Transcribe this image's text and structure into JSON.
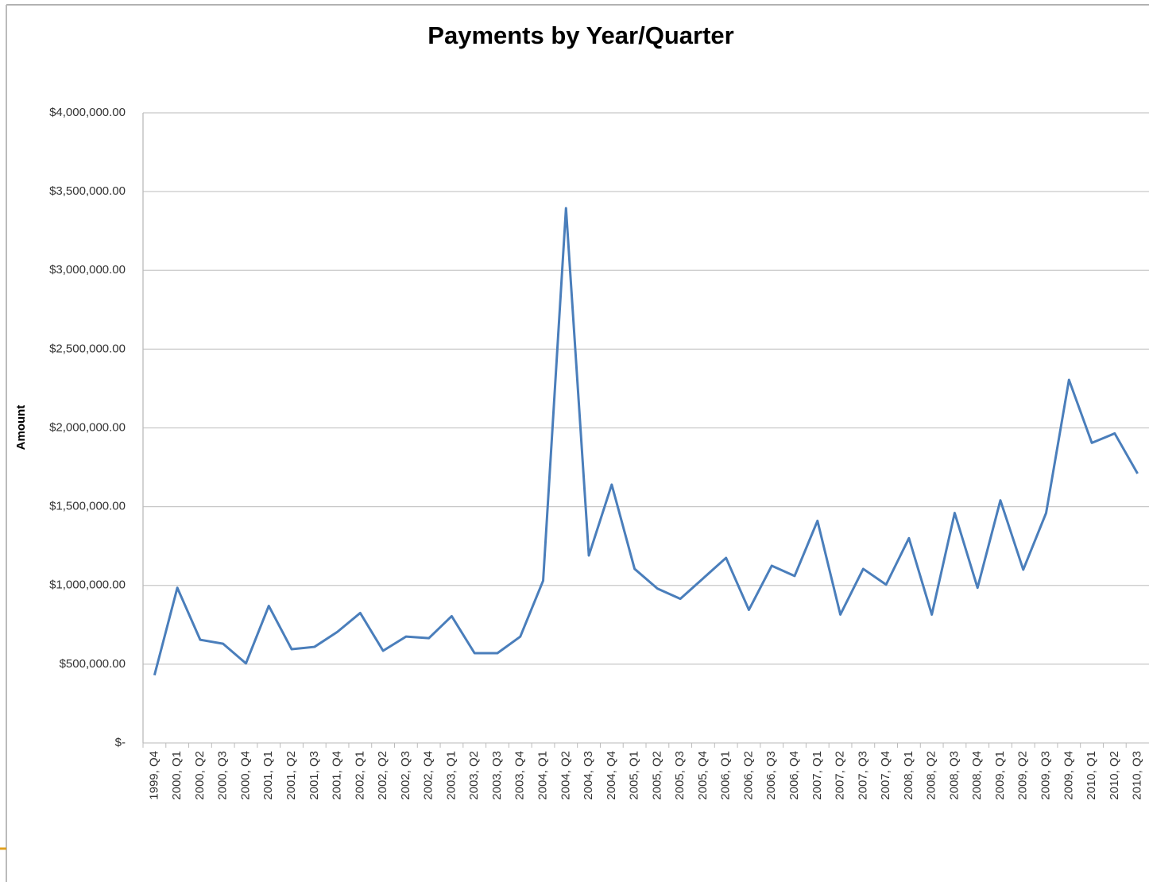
{
  "chart_data": {
    "type": "line",
    "title": "Payments by Year/Quarter",
    "y_label": "Amount",
    "categories": [
      "1999, Q4",
      "2000, Q1",
      "2000, Q2",
      "2000, Q3",
      "2000, Q4",
      "2001, Q1",
      "2001, Q2",
      "2001, Q3",
      "2001, Q4",
      "2002, Q1",
      "2002, Q2",
      "2002, Q3",
      "2002, Q4",
      "2003, Q1",
      "2003, Q2",
      "2003, Q3",
      "2003, Q4",
      "2004, Q1",
      "2004, Q2",
      "2004, Q3",
      "2004, Q4",
      "2005, Q1",
      "2005, Q2",
      "2005, Q3",
      "2005, Q4",
      "2006, Q1",
      "2006, Q2",
      "2006, Q3",
      "2006, Q4",
      "2007, Q1",
      "2007, Q2",
      "2007, Q3",
      "2007, Q4",
      "2008, Q1",
      "2008, Q2",
      "2008, Q3",
      "2008, Q4",
      "2009, Q1",
      "2009, Q2",
      "2009, Q3",
      "2009, Q4",
      "2010, Q1",
      "2010, Q2",
      "2010, Q3"
    ],
    "values": [
      430000,
      985000,
      655000,
      630000,
      505000,
      870000,
      595000,
      610000,
      705000,
      825000,
      585000,
      675000,
      665000,
      805000,
      570000,
      570000,
      675000,
      1030000,
      3395000,
      1190000,
      1640000,
      1105000,
      980000,
      915000,
      1045000,
      1175000,
      845000,
      1125000,
      1060000,
      1410000,
      815000,
      1105000,
      1005000,
      1300000,
      815000,
      1460000,
      985000,
      1540000,
      1100000,
      1460000,
      2305000,
      1905000,
      1965000,
      1710000
    ],
    "color": "#4a7ebb",
    "ylim": [
      0,
      4000000
    ],
    "yticks": [
      {
        "value": 0,
        "label": "$-"
      },
      {
        "value": 500000,
        "label": "$500,000.00"
      },
      {
        "value": 1000000,
        "label": "$1,000,000.00"
      },
      {
        "value": 1500000,
        "label": "$1,500,000.00"
      },
      {
        "value": 2000000,
        "label": "$2,000,000.00"
      },
      {
        "value": 2500000,
        "label": "$2,500,000.00"
      },
      {
        "value": 3000000,
        "label": "$3,000,000.00"
      },
      {
        "value": 3500000,
        "label": "$3,500,000.00"
      },
      {
        "value": 4000000,
        "label": "$4,000,000.00"
      }
    ],
    "grid": true
  }
}
